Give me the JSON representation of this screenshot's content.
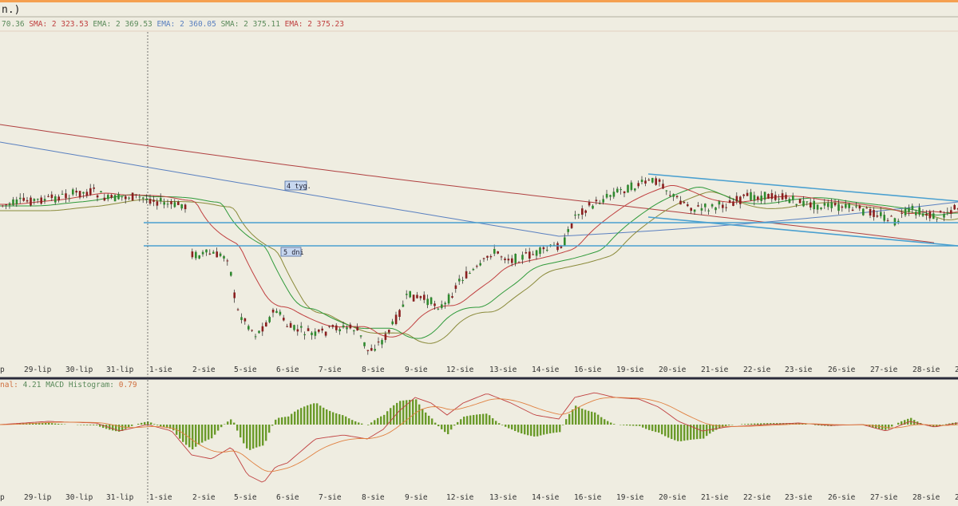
{
  "window": {
    "title": "n.)",
    "accent_color": "#f5a050"
  },
  "indicators": {
    "price_overlay": [
      {
        "text": "70.36",
        "color": "#5a8a5a"
      },
      {
        "text": " SMA: 2 323.53",
        "color": "#c04040"
      },
      {
        "text": " EMA: 2 369.53",
        "color": "#5a8a5a"
      },
      {
        "text": " EMA: 2 360.05",
        "color": "#5a80c0"
      },
      {
        "text": " SMA: 2 375.11",
        "color": "#5a8a5a"
      },
      {
        "text": " EMA: 2 375.23",
        "color": "#c04040"
      }
    ],
    "macd_overlay": [
      {
        "text": "nal: ",
        "color": "#d07040"
      },
      {
        "text": "4.21",
        "color": "#5a8a5a"
      },
      {
        "text": " MACD Histogram: ",
        "color": "#5a8a5a"
      },
      {
        "text": "0.79",
        "color": "#d07040"
      }
    ]
  },
  "chart_data": {
    "type": "candlestick",
    "date_labels": [
      "p",
      "29-lip",
      "30-lip",
      "31-lip",
      "1-sie",
      "2-sie",
      "5-sie",
      "6-sie",
      "7-sie",
      "8-sie",
      "9-sie",
      "12-sie",
      "13-sie",
      "14-sie",
      "16-sie",
      "19-sie",
      "20-sie",
      "21-sie",
      "22-sie",
      "23-sie",
      "26-sie",
      "27-sie",
      "28-sie",
      "2"
    ],
    "annotations": [
      {
        "text": "4 tyg."
      },
      {
        "text": "5 dni"
      }
    ],
    "colors": {
      "up": "#2f8a2f",
      "down": "#8a1f1f",
      "wick": "#222222",
      "ema_short": "#c04040",
      "ema_long": "#2f9a3a",
      "sma_mid": "#8a8a3a",
      "ema_200": "#5a80c0",
      "sma_200": "#b04040",
      "support": "#4aa0d0",
      "macd_line": "#e08040",
      "signal_line": "#c04040",
      "histogram": "#6a9a2a"
    },
    "grid": false
  }
}
